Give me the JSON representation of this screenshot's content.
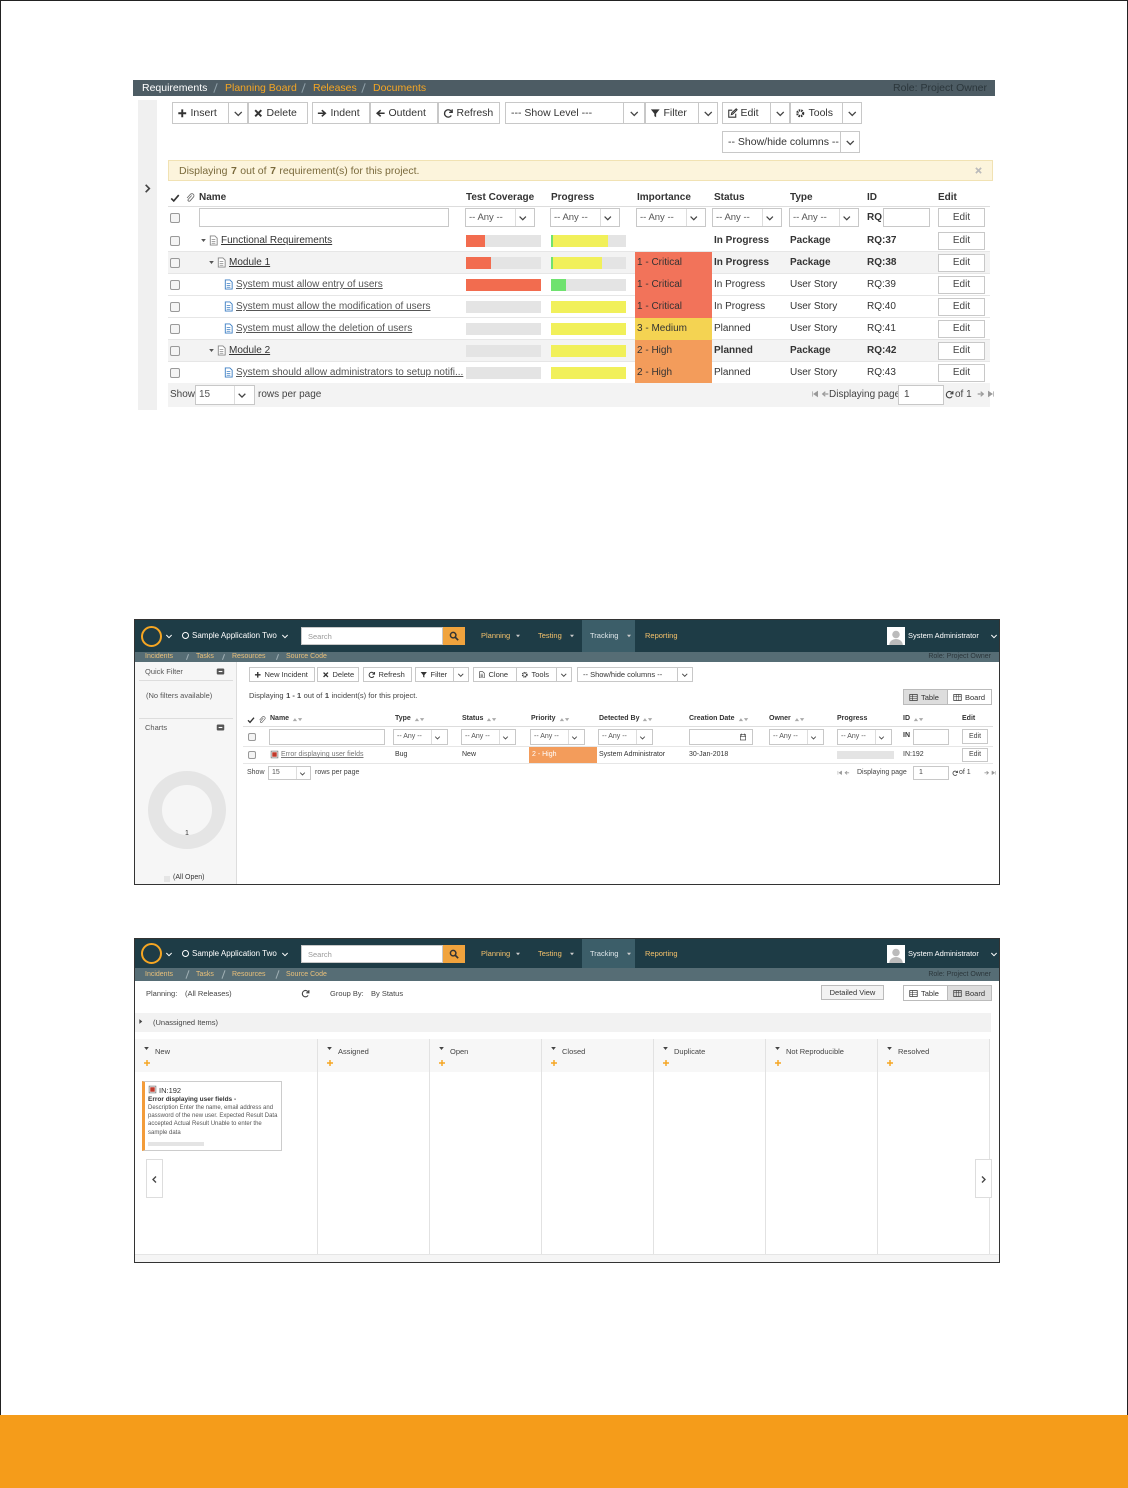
{
  "requirements": {
    "breadcrumbs": [
      "Requirements",
      "Planning Board",
      "Releases",
      "Documents"
    ],
    "role": "Role: Project Owner",
    "toolbar": [
      "Insert",
      "Delete",
      "Indent",
      "Outdent",
      "Refresh",
      "--- Show Level ---",
      "Filter",
      "Edit",
      "Tools"
    ],
    "show_hide": "-- Show/hide columns --",
    "notice": [
      "Displaying",
      "7",
      "out of",
      "7",
      "requirement(s) for this project."
    ],
    "columns": [
      "Name",
      "Test Coverage",
      "Progress",
      "Importance",
      "Status",
      "Type",
      "ID",
      "Edit"
    ],
    "filters": [
      "-- Any --",
      "-- Any --",
      "-- Any --",
      "-- Any --",
      "-- Any --",
      "RQ",
      "Edit"
    ],
    "rows": [
      {
        "name": "Functional Requirements",
        "coverage_failed": 25,
        "progress_completed": 3,
        "progress_in_progress": 73,
        "status": "In Progress",
        "type": "Package",
        "id": "RQ:37",
        "edit": "Edit",
        "children": [
          {
            "name": "Module 1",
            "coverage_failed": 33,
            "progress_completed": 3,
            "progress_in_progress": 65,
            "importance": "1 - Critical",
            "importance_color": "#f2735a",
            "status": "In Progress",
            "type": "Package",
            "id": "RQ:38",
            "edit": "Edit",
            "children": [
              {
                "name": "System must allow entry of users",
                "coverage_failed": 100,
                "progress_completed": 20,
                "progress_in_progress": 0,
                "importance": "1 - Critical",
                "importance_color": "#f2735a",
                "status": "In Progress",
                "type": "User Story",
                "id": "RQ:39",
                "edit": "Edit"
              },
              {
                "name": "System must allow the modification of users",
                "coverage_failed": 0,
                "progress_completed": 0,
                "progress_in_progress": 100,
                "importance": "1 - Critical",
                "importance_color": "#f2735a",
                "status": "In Progress",
                "type": "User Story",
                "id": "RQ:40",
                "edit": "Edit"
              },
              {
                "name": "System must allow the deletion of users",
                "coverage_failed": 0,
                "progress_completed": 0,
                "progress_in_progress": 100,
                "importance": "3 - Medium",
                "importance_color": "#f4d352",
                "status": "Planned",
                "type": "User Story",
                "id": "RQ:41",
                "edit": "Edit"
              }
            ]
          },
          {
            "name": "Module 2",
            "coverage_failed": 0,
            "progress_completed": 0,
            "progress_in_progress": 100,
            "importance": "2 - High",
            "importance_color": "#f39c5b",
            "status": "Planned",
            "type": "Package",
            "id": "RQ:42",
            "edit": "Edit",
            "children": [
              {
                "name": "System should allow administrators to setup notifi...",
                "coverage_failed": 0,
                "progress_completed": 0,
                "progress_in_progress": 100,
                "importance": "2 - High",
                "importance_color": "#f39c5b",
                "status": "Planned",
                "type": "User Story",
                "id": "RQ:43",
                "edit": "Edit"
              }
            ]
          }
        ]
      }
    ],
    "footer": {
      "show": "Show",
      "rows": "15",
      "rows_per_page": "rows per page",
      "displaying_page": "Displaying page",
      "page": "1",
      "of": "of 1"
    }
  },
  "incidents": {
    "nav": {
      "project": "Sample Application Two",
      "search": "Search",
      "menu": [
        "Planning",
        "Testing",
        "Tracking",
        "Reporting"
      ],
      "user": "System Administrator"
    },
    "subnav": [
      "Incidents",
      "Tasks",
      "Resources",
      "Source Code"
    ],
    "role": "Role: Project Owner",
    "sidebar": {
      "quick_filter": "Quick Filter",
      "no_filters": "(No filters available)",
      "charts": "Charts",
      "donut": {
        "value": 1,
        "legend": "(All Open)"
      }
    },
    "toolbar": [
      "New Incident",
      "Delete",
      "Refresh",
      "Filter",
      "Clone",
      "Tools",
      "-- Show/hide columns --"
    ],
    "notice": [
      "Displaying",
      "1 - 1",
      "out of",
      "1",
      "incident(s) for this project."
    ],
    "views": [
      "Table",
      "Board"
    ],
    "columns": [
      "Name",
      "Type",
      "Status",
      "Priority",
      "Detected By",
      "Creation Date",
      "Owner",
      "Progress",
      "ID",
      "Edit"
    ],
    "filters": [
      "-- Any --",
      "-- Any --",
      "-- Any --",
      "-- Any --",
      "-- Any --",
      "-- Any --",
      "IN",
      "Edit"
    ],
    "rows": [
      {
        "name": "Error displaying user fields",
        "type": "Bug",
        "status": "New",
        "priority": "2 - High",
        "priority_color": "#f39c5b",
        "detected_by": "System Administrator",
        "creation_date": "30-Jan-2018",
        "id": "IN:192",
        "edit": "Edit"
      }
    ],
    "footer": {
      "show": "Show",
      "rows": "15",
      "rows_per_page": "rows per page",
      "displaying_page": "Displaying page",
      "page": "1",
      "of": "of 1"
    }
  },
  "board": {
    "nav": {
      "project": "Sample Application Two",
      "search": "Search",
      "menu": [
        "Planning",
        "Testing",
        "Tracking",
        "Reporting"
      ],
      "user": "System Administrator"
    },
    "subnav": [
      "Incidents",
      "Tasks",
      "Resources",
      "Source Code"
    ],
    "role": "Role: Project Owner",
    "planning_label": "Planning:",
    "planning_value": "(All Releases)",
    "group_by_label": "Group By:",
    "group_by_value": "By Status",
    "detailed_view": "Detailed View",
    "views": [
      "Table",
      "Board"
    ],
    "unassigned": "(Unassigned Items)",
    "columns": [
      "New",
      "Assigned",
      "Open",
      "Closed",
      "Duplicate",
      "Not Reproducible",
      "Resolved"
    ],
    "card": {
      "id": "IN:192",
      "title": "Error displaying user fields -",
      "description": "Description Enter the name, email address and password of the new user. Expected Result Data accepted Actual Result Unable to enter the sample data"
    }
  }
}
